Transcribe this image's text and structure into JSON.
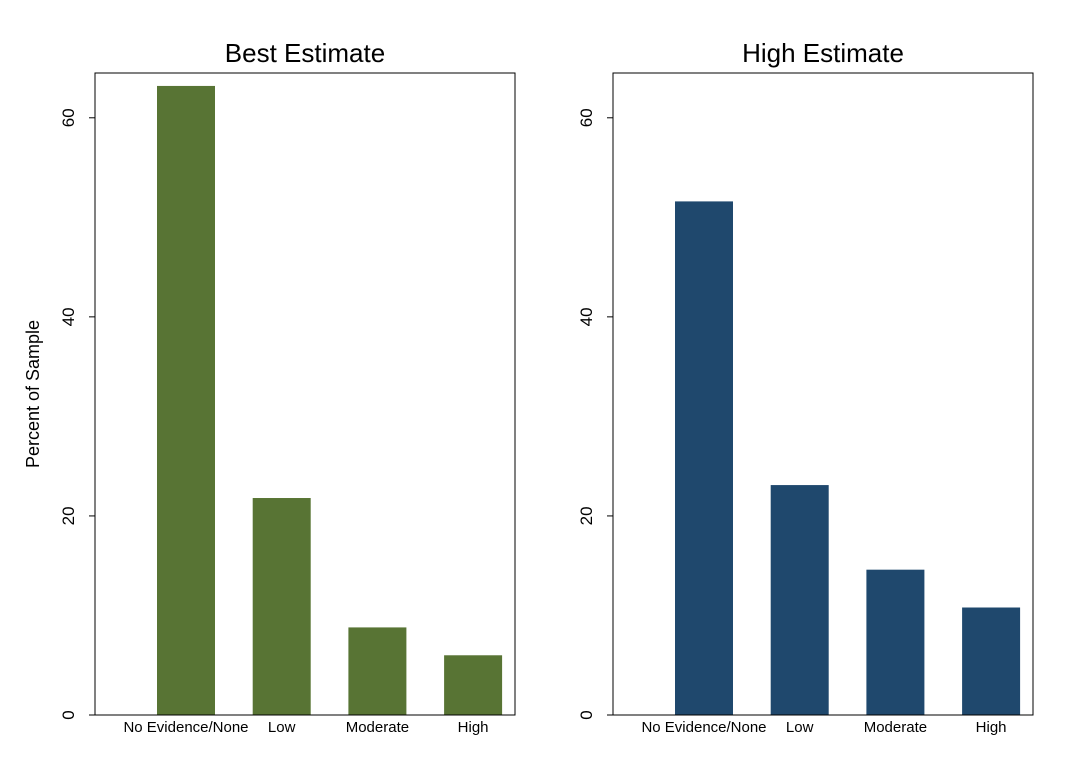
{
  "chart_data": [
    {
      "type": "bar",
      "title": "Best Estimate",
      "ylabel": "Percent of Sample",
      "categories": [
        "No Evidence/None",
        "Low",
        "Moderate",
        "High"
      ],
      "values": [
        63.2,
        21.8,
        8.8,
        6.0
      ],
      "color": "#587434",
      "ylim": [
        0,
        64.5
      ],
      "yticks": [
        0,
        20,
        40,
        60
      ]
    },
    {
      "type": "bar",
      "title": "High Estimate",
      "categories": [
        "No Evidence/None",
        "Low",
        "Moderate",
        "High"
      ],
      "values": [
        51.6,
        23.1,
        14.6,
        10.8
      ],
      "color": "#1f486d",
      "ylim": [
        0,
        64.5
      ],
      "yticks": [
        0,
        20,
        40,
        60
      ]
    }
  ]
}
